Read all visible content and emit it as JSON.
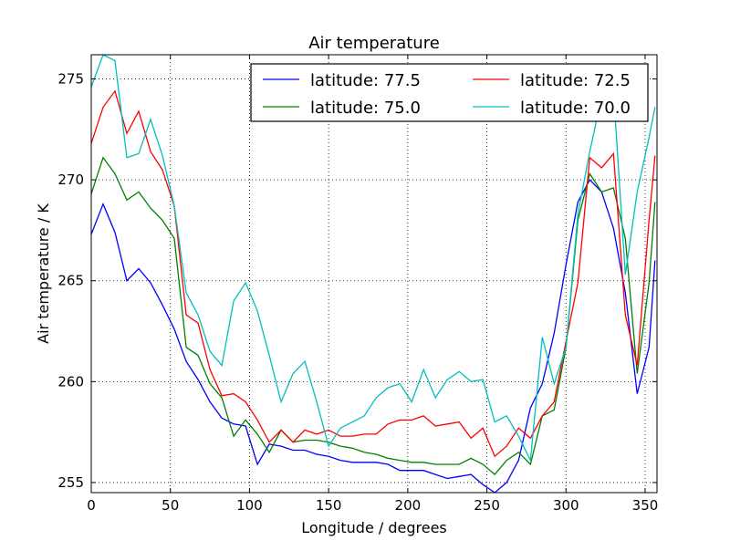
{
  "chart_data": {
    "type": "line",
    "title": "Air temperature",
    "xlabel": "Longitude / degrees",
    "ylabel": "Air temperature / K",
    "xlim": [
      0,
      357.5
    ],
    "ylim": [
      254.5,
      276.2
    ],
    "xticks": [
      0,
      50,
      100,
      150,
      200,
      250,
      300,
      350
    ],
    "yticks": [
      255,
      260,
      265,
      270,
      275
    ],
    "grid": true,
    "legend_placement": "top-right",
    "x": [
      0,
      7.5,
      15,
      22.5,
      30,
      37.5,
      45,
      52.5,
      60,
      67.5,
      75,
      82.5,
      90,
      97.5,
      105,
      112.5,
      120,
      127.5,
      135,
      142.5,
      150,
      157.5,
      165,
      172.5,
      180,
      187.5,
      195,
      202.5,
      210,
      217.5,
      225,
      232.5,
      240,
      247.5,
      255,
      262.5,
      270,
      277.5,
      285,
      292.5,
      300,
      307.5,
      315,
      322.5,
      330,
      337.5,
      345,
      352.5,
      356.25
    ],
    "series": [
      {
        "name": "latitude: 77.5",
        "color": "#0000ff",
        "values": [
          267.3,
          268.8,
          267.4,
          265.0,
          265.6,
          264.9,
          263.8,
          262.6,
          261.0,
          260.1,
          259.0,
          258.2,
          257.9,
          257.8,
          255.9,
          256.9,
          256.8,
          256.6,
          256.6,
          256.4,
          256.3,
          256.1,
          256.0,
          256.0,
          256.0,
          255.9,
          255.6,
          255.6,
          255.6,
          255.4,
          255.2,
          255.3,
          255.4,
          254.9,
          254.5,
          255.0,
          256.1,
          258.7,
          259.9,
          262.4,
          265.8,
          268.9,
          270.0,
          269.4,
          267.6,
          264.4,
          259.4,
          261.7,
          266.0
        ]
      },
      {
        "name": "latitude: 75.0",
        "color": "#008000",
        "values": [
          269.3,
          271.1,
          270.3,
          269.0,
          269.4,
          268.6,
          268.0,
          267.1,
          261.7,
          261.3,
          259.9,
          259.2,
          257.3,
          258.1,
          257.4,
          256.5,
          257.6,
          257.0,
          257.1,
          257.1,
          257.0,
          256.8,
          256.7,
          256.5,
          256.4,
          256.2,
          256.1,
          256.0,
          256.0,
          255.9,
          255.9,
          255.9,
          256.2,
          255.9,
          255.4,
          256.1,
          256.5,
          255.9,
          258.3,
          258.6,
          261.7,
          268.0,
          270.3,
          269.4,
          269.6,
          267.1,
          260.4,
          264.9,
          268.9
        ]
      },
      {
        "name": "latitude: 72.5",
        "color": "#ff0000",
        "values": [
          271.8,
          273.6,
          274.4,
          272.3,
          273.4,
          271.4,
          270.5,
          268.7,
          263.3,
          262.9,
          260.6,
          259.3,
          259.4,
          259.0,
          258.1,
          257.0,
          257.6,
          257.0,
          257.6,
          257.4,
          257.6,
          257.3,
          257.3,
          257.4,
          257.4,
          257.9,
          258.1,
          258.1,
          258.3,
          257.8,
          257.9,
          258.0,
          257.2,
          257.7,
          256.3,
          256.8,
          257.7,
          257.2,
          258.3,
          259.0,
          262.0,
          264.9,
          271.1,
          270.6,
          271.3,
          263.3,
          260.8,
          268.0,
          271.2
        ]
      },
      {
        "name": "latitude: 70.0",
        "color": "#00bfbf",
        "values": [
          274.6,
          276.2,
          275.9,
          271.1,
          271.3,
          273.0,
          271.2,
          268.7,
          264.4,
          263.3,
          261.5,
          260.8,
          264.0,
          264.9,
          263.5,
          261.3,
          259.0,
          260.4,
          261.0,
          259.0,
          256.8,
          257.7,
          258.0,
          258.3,
          259.2,
          259.7,
          259.9,
          259.0,
          260.6,
          259.2,
          260.1,
          260.5,
          260.0,
          260.1,
          258.0,
          258.3,
          257.3,
          256.1,
          262.2,
          259.9,
          261.7,
          268.3,
          271.4,
          274.1,
          274.4,
          265.3,
          269.4,
          272.1,
          273.6
        ]
      }
    ]
  }
}
